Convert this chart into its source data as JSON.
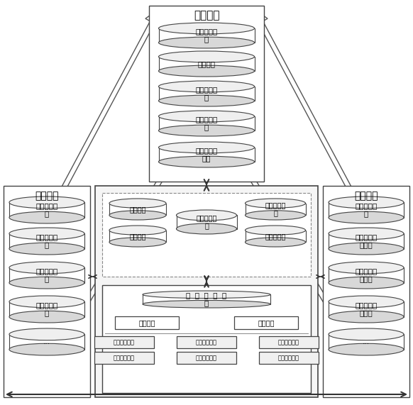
{
  "bg_color": "#ffffff",
  "title_dispatch": "调度系统",
  "title_production": "生产系统",
  "title_marketing": "营销系统",
  "dispatch_dbs": [
    "基础信息管\n理",
    "设备管理",
    "电网运行信\n息",
    "继电保护管\n理",
    "调度自动化\n管理"
  ],
  "production_dbs": [
    "基础信息管\n理",
    "电网资源管\n理",
    "停电通知管\n理",
    "设备台账管\n理",
    "..."
  ],
  "marketing_dbs": [
    "停电信息管\n理",
    "电网基础档\n案管理",
    "用户电量信\n息管理",
    "故障报修抢\n修管理",
    "..."
  ],
  "ops_dbs": [
    {
      "label": "精益调度",
      "col": 0
    },
    {
      "label": "线损管理",
      "col": 0
    },
    {
      "label": "台区运行管\n理",
      "col": 1
    },
    {
      "label": "线路运行监\n测",
      "col": 2
    },
    {
      "label": "低电压管理",
      "col": 2
    }
  ],
  "unified_label": "统  一  访  问  接\n口",
  "data_verify_label": "数据校验",
  "unified_model_label": "统一模型",
  "data_items_row1": [
    "配网运行信息",
    "配网模型信息",
    "设备台账信息"
  ],
  "data_items_row2": [
    "用户用电信息",
    "设备地理信息",
    "用户档案信息"
  ]
}
